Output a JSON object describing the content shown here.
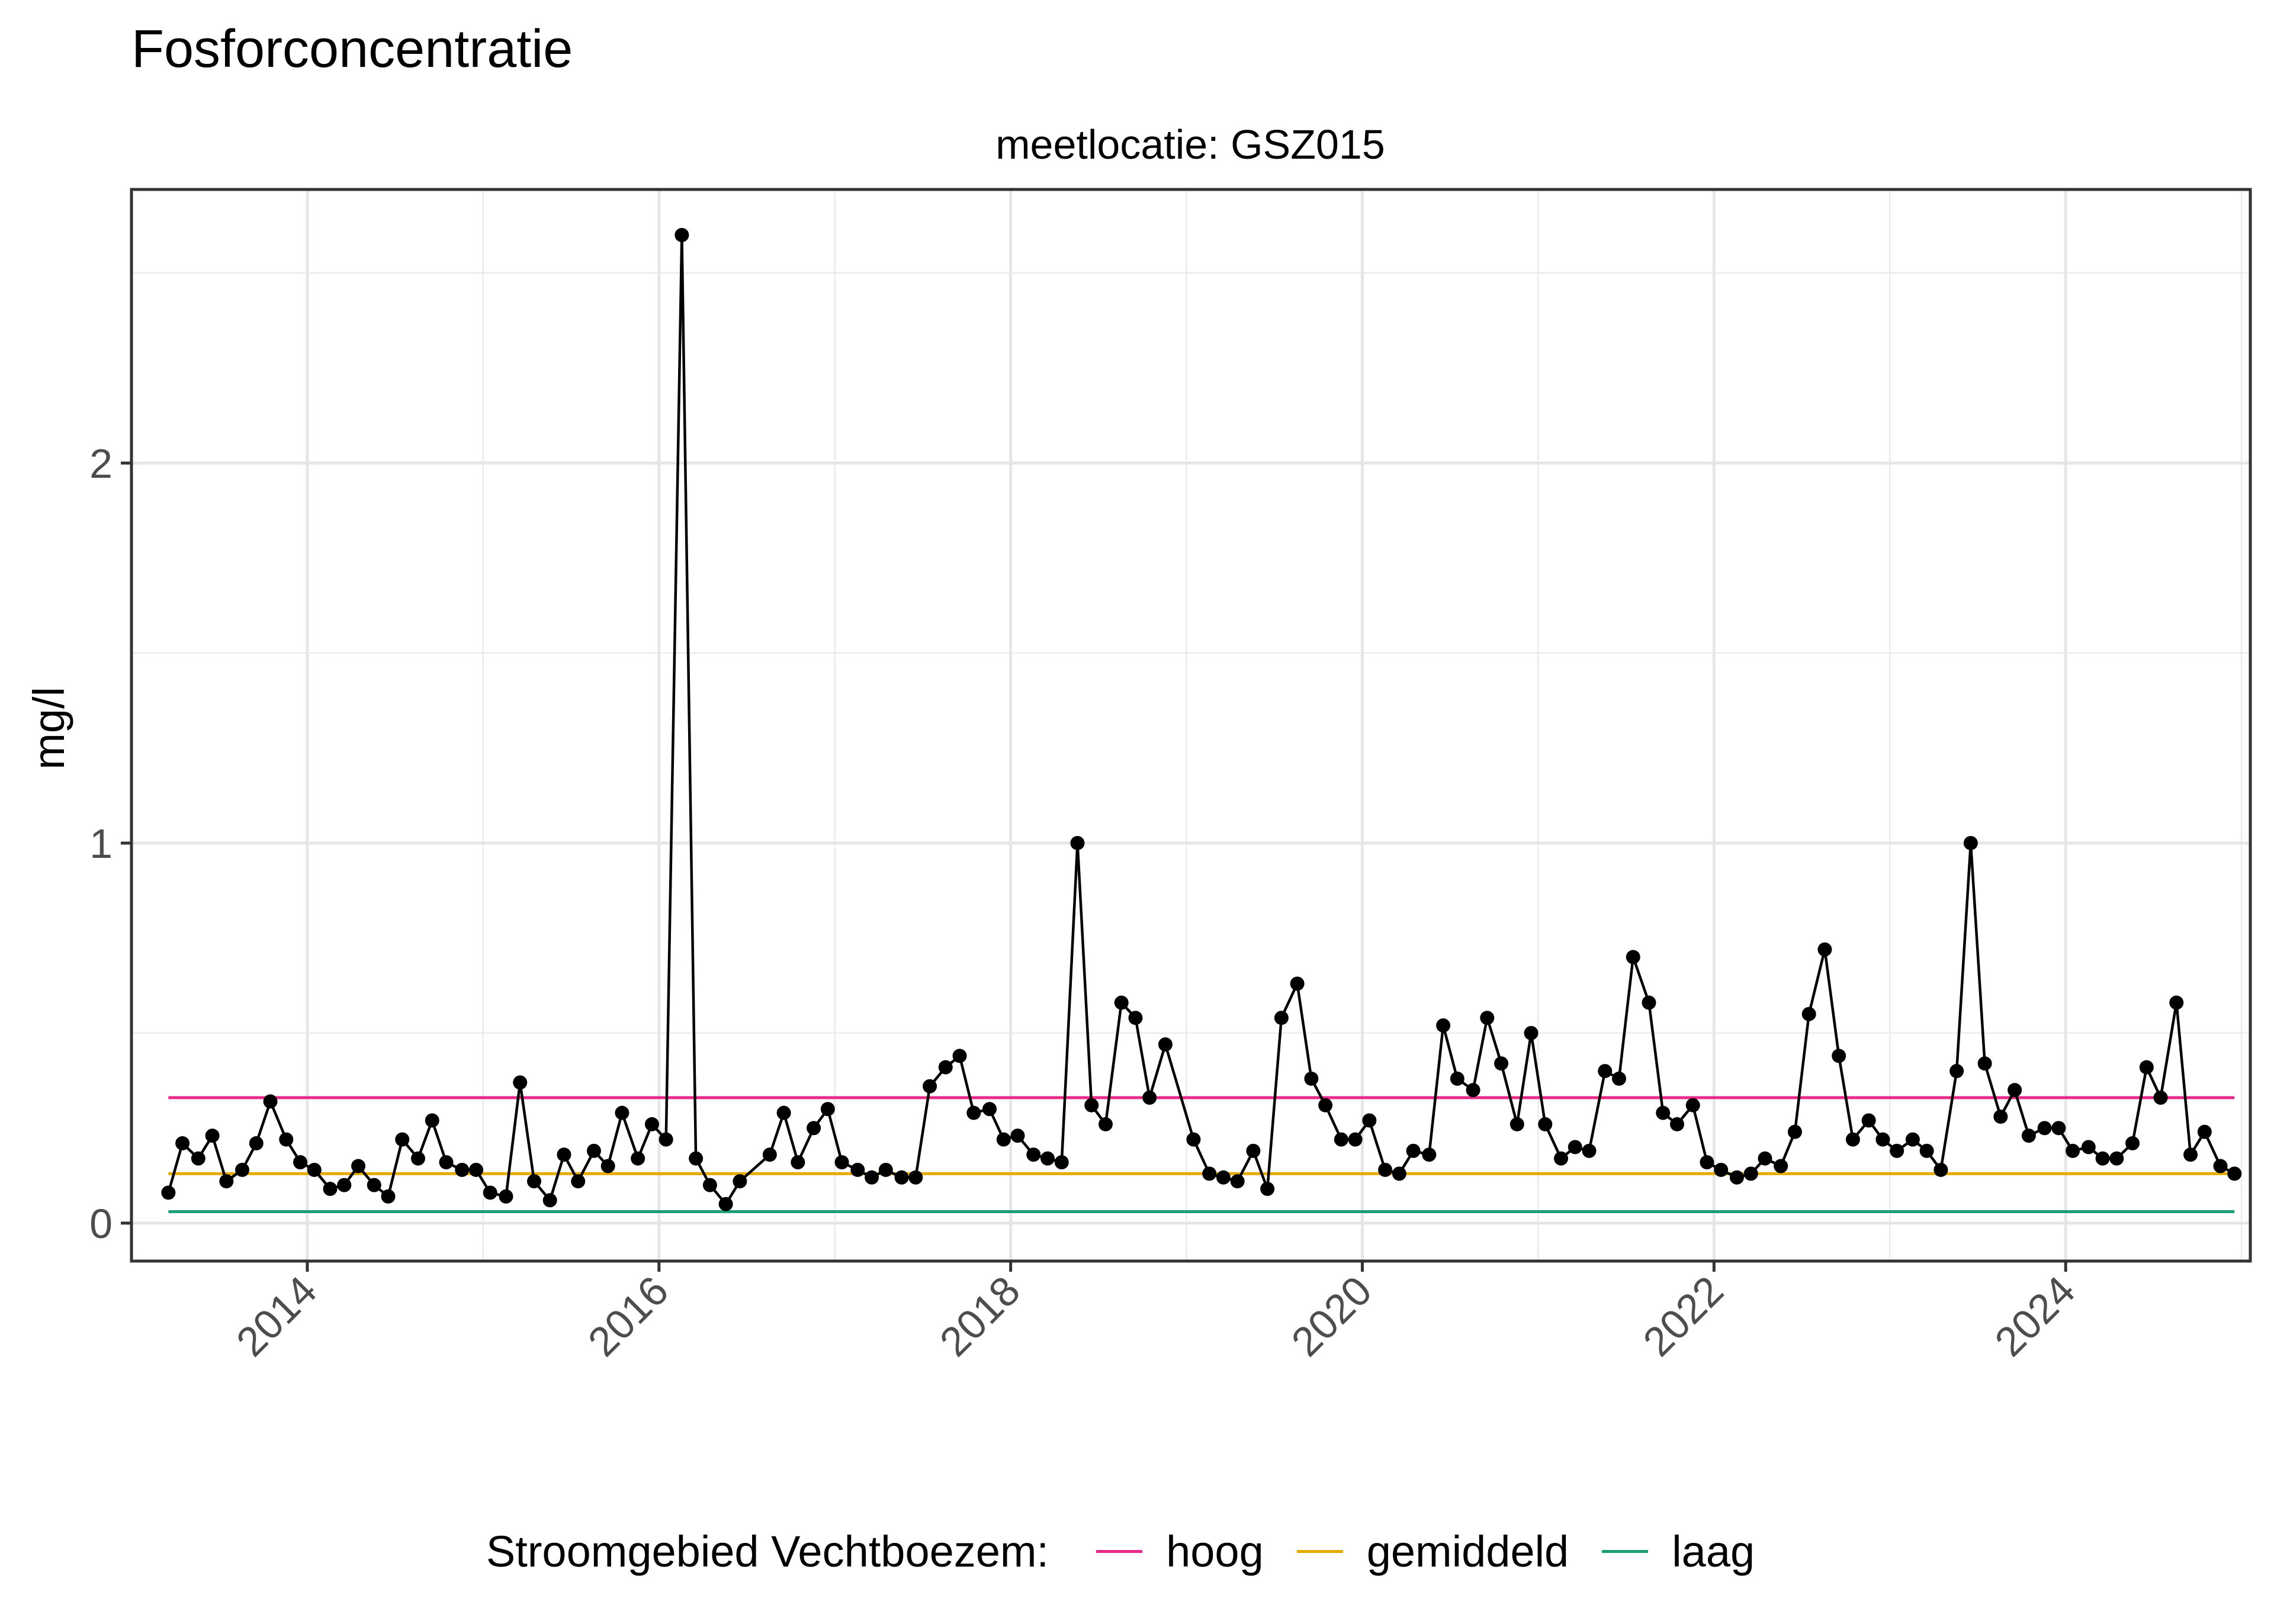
{
  "chart_data": {
    "type": "line",
    "title": "Fosforconcentratie",
    "facet_label": "meetlocatie: GSZ015",
    "xlabel": "",
    "ylabel": "mg/l",
    "xlim": [
      2013.0,
      2025.05
    ],
    "ylim": [
      -0.1,
      2.72
    ],
    "x_ticks": [
      2014,
      2016,
      2018,
      2020,
      2022,
      2024
    ],
    "y_ticks": [
      0,
      1,
      2
    ],
    "grid": true,
    "legend_position": "bottom",
    "legend_title": "Stroomgebied Vechtboezem:",
    "series": [
      {
        "name": "GSZ015",
        "color": "#000000",
        "x": [
          2013.21,
          2013.29,
          2013.38,
          2013.46,
          2013.54,
          2013.63,
          2013.71,
          2013.79,
          2013.88,
          2013.96,
          2014.04,
          2014.13,
          2014.21,
          2014.29,
          2014.38,
          2014.46,
          2014.54,
          2014.63,
          2014.71,
          2014.79,
          2014.88,
          2014.96,
          2015.04,
          2015.13,
          2015.21,
          2015.29,
          2015.38,
          2015.46,
          2015.54,
          2015.63,
          2015.71,
          2015.79,
          2015.88,
          2015.96,
          2016.04,
          2016.13,
          2016.21,
          2016.29,
          2016.38,
          2016.46,
          2016.63,
          2016.71,
          2016.79,
          2016.88,
          2016.96,
          2017.04,
          2017.13,
          2017.21,
          2017.29,
          2017.38,
          2017.46,
          2017.54,
          2017.63,
          2017.71,
          2017.79,
          2017.88,
          2017.96,
          2018.04,
          2018.13,
          2018.21,
          2018.29,
          2018.38,
          2018.46,
          2018.54,
          2018.63,
          2018.71,
          2018.79,
          2018.88,
          2019.04,
          2019.13,
          2019.21,
          2019.29,
          2019.38,
          2019.46,
          2019.54,
          2019.63,
          2019.71,
          2019.79,
          2019.88,
          2019.96,
          2020.04,
          2020.13,
          2020.21,
          2020.29,
          2020.38,
          2020.46,
          2020.54,
          2020.63,
          2020.71,
          2020.79,
          2020.88,
          2020.96,
          2021.04,
          2021.13,
          2021.21,
          2021.29,
          2021.38,
          2021.46,
          2021.54,
          2021.63,
          2021.71,
          2021.79,
          2021.88,
          2021.96,
          2022.04,
          2022.13,
          2022.21,
          2022.29,
          2022.38,
          2022.46,
          2022.54,
          2022.63,
          2022.71,
          2022.79,
          2022.88,
          2022.96,
          2023.04,
          2023.13,
          2023.21,
          2023.29,
          2023.38,
          2023.46,
          2023.54,
          2023.63,
          2023.71,
          2023.79,
          2023.88,
          2023.96,
          2024.04,
          2024.13,
          2024.21,
          2024.29,
          2024.38,
          2024.46,
          2024.54,
          2024.63,
          2024.71,
          2024.79,
          2024.88,
          2024.96
        ],
        "y": [
          0.08,
          0.21,
          0.17,
          0.23,
          0.11,
          0.14,
          0.21,
          0.32,
          0.22,
          0.16,
          0.14,
          0.09,
          0.1,
          0.15,
          0.1,
          0.07,
          0.22,
          0.17,
          0.27,
          0.16,
          0.14,
          0.14,
          0.08,
          0.07,
          0.37,
          0.11,
          0.06,
          0.18,
          0.11,
          0.19,
          0.15,
          0.29,
          0.17,
          0.26,
          0.22,
          2.6,
          0.17,
          0.1,
          0.05,
          0.11,
          0.18,
          0.29,
          0.16,
          0.25,
          0.3,
          0.16,
          0.14,
          0.12,
          0.14,
          0.12,
          0.12,
          0.36,
          0.41,
          0.44,
          0.29,
          0.3,
          0.22,
          0.23,
          0.18,
          0.17,
          0.16,
          1.0,
          0.31,
          0.26,
          0.58,
          0.54,
          0.33,
          0.47,
          0.22,
          0.13,
          0.12,
          0.11,
          0.19,
          0.09,
          0.54,
          0.63,
          0.38,
          0.31,
          0.22,
          0.22,
          0.27,
          0.14,
          0.13,
          0.19,
          0.18,
          0.52,
          0.38,
          0.35,
          0.54,
          0.42,
          0.26,
          0.5,
          0.26,
          0.17,
          0.2,
          0.19,
          0.4,
          0.38,
          0.7,
          0.58,
          0.29,
          0.26,
          0.31,
          0.16,
          0.14,
          0.12,
          0.13,
          0.17,
          0.15,
          0.24,
          0.55,
          0.72,
          0.44,
          0.22,
          0.27,
          0.22,
          0.19,
          0.22,
          0.19,
          0.14,
          0.4,
          1.0,
          0.42,
          0.28,
          0.35,
          0.23,
          0.25,
          0.25,
          0.19,
          0.2,
          0.17,
          0.17,
          0.21,
          0.41,
          0.33,
          0.58,
          0.18,
          0.24,
          0.15,
          0.13
        ]
      }
    ],
    "reference_lines": [
      {
        "name": "hoog",
        "value": 0.33,
        "color": "#E7298A"
      },
      {
        "name": "gemiddeld",
        "value": 0.13,
        "color": "#E6AB02"
      },
      {
        "name": "laag",
        "value": 0.03,
        "color": "#1B9E77"
      }
    ]
  }
}
